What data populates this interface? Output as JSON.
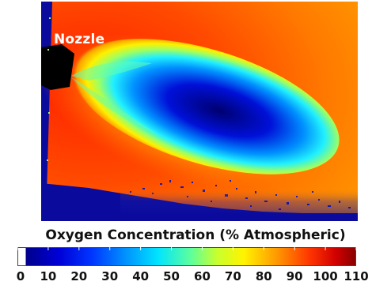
{
  "figure": {
    "nozzle_label": "Nozzle",
    "colorbar": {
      "title": "Oxygen Concentration (% Atmospheric)",
      "ticks": [
        "0",
        "10",
        "20",
        "30",
        "40",
        "50",
        "60",
        "70",
        "80",
        "90",
        "100",
        "110"
      ],
      "range": [
        0,
        110
      ]
    }
  },
  "colors": {
    "background_field": "#ff3a00",
    "plume_core": "#00008c",
    "nozzle": "#000000",
    "low_oxygen_floor": "#1010a0"
  }
}
